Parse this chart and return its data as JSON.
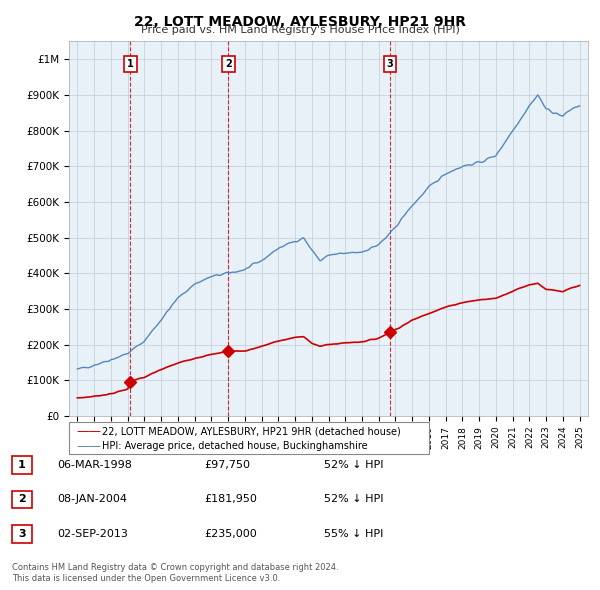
{
  "title": "22, LOTT MEADOW, AYLESBURY, HP21 9HR",
  "subtitle": "Price paid vs. HM Land Registry's House Price Index (HPI)",
  "background_color": "#ffffff",
  "chart_bg_color": "#e8f0f8",
  "grid_color": "#c0ccd8",
  "red_line_color": "#cc0000",
  "blue_line_color": "#5588bb",
  "legend_red_label": "22, LOTT MEADOW, AYLESBURY, HP21 9HR (detached house)",
  "legend_blue_label": "HPI: Average price, detached house, Buckinghamshire",
  "transactions": [
    {
      "num": 1,
      "year": 1998.17,
      "price": 97750,
      "label": "1",
      "date_str": "06-MAR-1998",
      "price_str": "£97,750",
      "hpi_pct": "52% ↓ HPI"
    },
    {
      "num": 2,
      "year": 2004.02,
      "price": 181950,
      "label": "2",
      "date_str": "08-JAN-2004",
      "price_str": "£181,950",
      "hpi_pct": "52% ↓ HPI"
    },
    {
      "num": 3,
      "year": 2013.67,
      "price": 235000,
      "label": "3",
      "date_str": "02-SEP-2013",
      "price_str": "£235,000",
      "hpi_pct": "55% ↓ HPI"
    }
  ],
  "footer_line1": "Contains HM Land Registry data © Crown copyright and database right 2024.",
  "footer_line2": "This data is licensed under the Open Government Licence v3.0.",
  "ylim": [
    0,
    1050000
  ],
  "xlim": [
    1994.5,
    2025.5
  ]
}
